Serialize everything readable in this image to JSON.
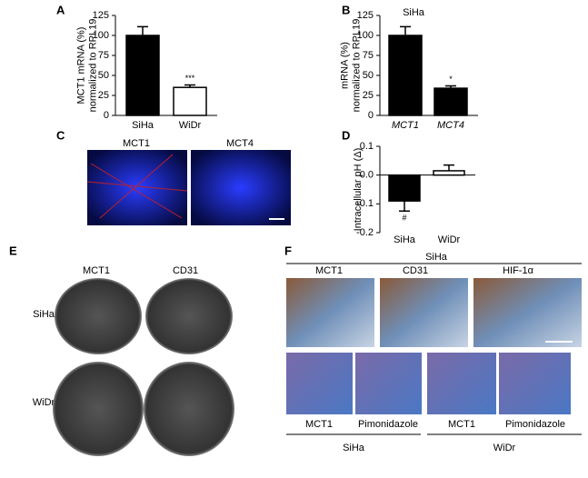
{
  "chart_data": [
    {
      "type": "bar",
      "label": "A",
      "y_label": [
        "MCT1 mRNA (%)",
        "normalized to RPL19"
      ],
      "categories": [
        "SiHa",
        "WiDr"
      ],
      "values": [
        100,
        35
      ],
      "errors": [
        11,
        3
      ],
      "colors": [
        "#000000",
        "#ffffff"
      ],
      "annotations": [
        "",
        "***"
      ],
      "ylim": [
        0,
        125
      ],
      "yticks": [
        0,
        25,
        50,
        75,
        100,
        125
      ]
    },
    {
      "type": "bar",
      "label": "B",
      "title": "SiHa",
      "y_label": [
        "mRNA (%)",
        "normalized to RPL19"
      ],
      "categories": [
        "MCT1",
        "MCT4"
      ],
      "values": [
        100,
        34
      ],
      "errors": [
        11,
        3
      ],
      "colors": [
        "#000000",
        "#000000"
      ],
      "annotations": [
        "",
        "*"
      ],
      "ylim": [
        0,
        125
      ],
      "yticks": [
        0,
        25,
        50,
        75,
        100,
        125
      ]
    },
    {
      "type": "bar",
      "label": "D",
      "y_label": [
        "Intracellular pH (Δ)"
      ],
      "categories": [
        "SiHa",
        "WiDr"
      ],
      "values": [
        -0.09,
        0.015
      ],
      "errors": [
        0.035,
        0.02
      ],
      "colors": [
        "#000000",
        "#ffffff"
      ],
      "annotations": [
        "#",
        ""
      ],
      "ylim": [
        -0.2,
        0.1
      ],
      "yticks": [
        -0.2,
        -0.1,
        {
          "value": 0,
          "label": "0.0"
        },
        0.1
      ]
    }
  ],
  "panel_c": {
    "label": "C",
    "images": [
      "MCT1",
      "MCT4"
    ]
  },
  "panel_e": {
    "label": "E",
    "columns": [
      "MCT1",
      "CD31"
    ],
    "rows": [
      "SiHa",
      "WiDr"
    ]
  },
  "panel_f": {
    "label": "F",
    "top_group": "SiHa",
    "top_columns": [
      "MCT1",
      "CD31",
      "HIF-1α"
    ],
    "bottom_columns": [
      "MCT1",
      "Pimonidazole",
      "MCT1",
      "Pimonidazole"
    ],
    "bottom_groups": [
      "SiHa",
      "WiDr"
    ]
  }
}
